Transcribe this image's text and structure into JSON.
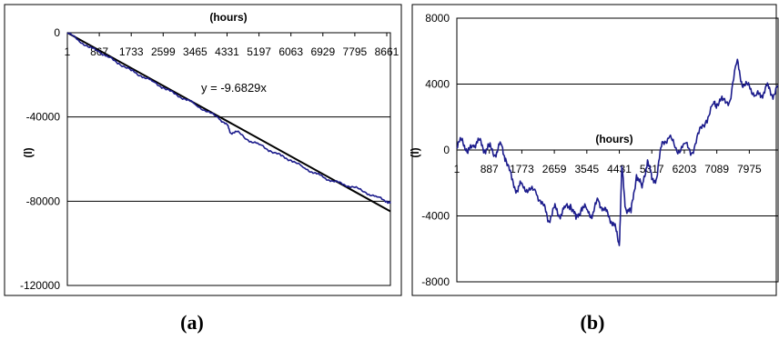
{
  "chart_data": [
    {
      "type": "line",
      "panel_label": "(a)",
      "xlabel": "(hours)",
      "ylabel": "(l)",
      "xlim": [
        1,
        8760
      ],
      "ylim": [
        -120000,
        0
      ],
      "x_ticks": [
        "1",
        "867",
        "1733",
        "2599",
        "3465",
        "4331",
        "5197",
        "6063",
        "6929",
        "7795",
        "8661"
      ],
      "y_ticks": [
        "0",
        "-40000",
        "-80000",
        "-120000"
      ],
      "grid": "horizontal",
      "trendline": {
        "equation": "y = -9.6829x",
        "slope": -9.6829
      },
      "series": [
        {
          "color": "#1c1c8c",
          "x": [
            1,
            300,
            600,
            867,
            1100,
            1400,
            1733,
            2000,
            2300,
            2599,
            2900,
            3200,
            3465,
            3800,
            4100,
            4331,
            4420,
            4600,
            4900,
            5197,
            5500,
            5800,
            6063,
            6400,
            6700,
            6929,
            7200,
            7500,
            7795,
            8100,
            8400,
            8661,
            8760
          ],
          "y": [
            0,
            -3500,
            -7000,
            -9000,
            -11500,
            -14500,
            -18000,
            -20500,
            -23000,
            -26000,
            -29000,
            -31500,
            -34000,
            -37500,
            -40500,
            -43500,
            -47500,
            -47000,
            -51000,
            -53000,
            -56000,
            -58500,
            -60500,
            -64000,
            -66500,
            -68500,
            -70500,
            -72000,
            -73500,
            -76000,
            -78000,
            -80000,
            -81000
          ]
        }
      ]
    },
    {
      "type": "line",
      "panel_label": "(b)",
      "xlabel": "(hours)",
      "ylabel": "(l)",
      "xlim": [
        1,
        8760
      ],
      "ylim": [
        -8000,
        8000
      ],
      "x_ticks": [
        "1",
        "887",
        "1773",
        "2659",
        "3545",
        "4431",
        "5317",
        "6203",
        "7089",
        "7975"
      ],
      "y_ticks": [
        "8000",
        "4000",
        "0",
        "-4000",
        "-8000"
      ],
      "grid": "horizontal",
      "series": [
        {
          "color": "#1c1c8c",
          "x": [
            1,
            150,
            300,
            450,
            600,
            750,
            887,
            1050,
            1200,
            1330,
            1500,
            1650,
            1773,
            1950,
            2150,
            2350,
            2500,
            2659,
            2800,
            2950,
            3100,
            3250,
            3400,
            3545,
            3700,
            3850,
            4000,
            4150,
            4300,
            4431,
            4500,
            4600,
            4750,
            4900,
            5050,
            5200,
            5317,
            5450,
            5600,
            5800,
            6000,
            6203,
            6400,
            6600,
            6800,
            7000,
            7089,
            7250,
            7450,
            7650,
            7800,
            7975,
            8150,
            8300,
            8450,
            8600,
            8760
          ],
          "y": [
            100,
            700,
            -200,
            300,
            600,
            0,
            200,
            -300,
            400,
            -500,
            -1800,
            -2500,
            -2000,
            -2500,
            -2500,
            -3300,
            -4300,
            -3500,
            -4000,
            -3500,
            -3300,
            -4200,
            -3500,
            -3600,
            -4000,
            -3000,
            -3600,
            -4000,
            -4600,
            -5800,
            -1000,
            -3500,
            -3800,
            -1500,
            -2300,
            -600,
            -1800,
            -1700,
            500,
            800,
            -100,
            400,
            -200,
            1000,
            1800,
            2800,
            2800,
            3000,
            3000,
            5500,
            3800,
            3900,
            3300,
            3300,
            3900,
            3300,
            3900
          ]
        }
      ]
    }
  ]
}
